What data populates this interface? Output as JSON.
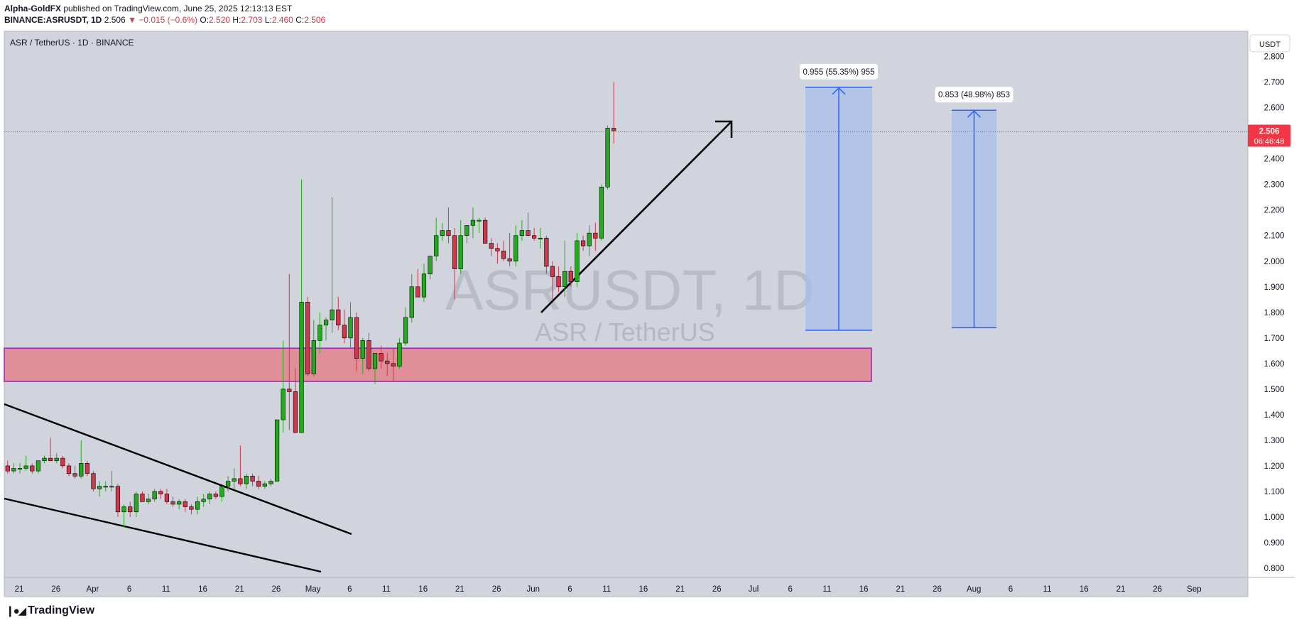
{
  "header": {
    "author": "Alpha-GoldFX",
    "published": " published on TradingView.com, June 25, 2025 12:13:13 EST",
    "symbol": "BINANCE:ASRUSDT, 1D",
    "last": "2.506",
    "change": "−0.015 (−0.6%)",
    "o_label": "O:",
    "o": "2.520",
    "h_label": "H:",
    "h": "2.703",
    "l_label": "L:",
    "l": "2.460",
    "c_label": "C:",
    "c": "2.506"
  },
  "chart_title": "ASR / TetherUS · 1D · BINANCE",
  "currency_button": "USDT",
  "watermark": {
    "ticker": "ASRUSDT, 1D",
    "name": "ASR / TetherUS"
  },
  "price_badge": {
    "price": "2.506",
    "countdown": "06:46:48"
  },
  "footer": {
    "brand": "TradingView"
  },
  "colors": {
    "up": "#22ab1d",
    "down": "#d1364a",
    "zone": "#e08e97",
    "zone_border": "#9c27b0",
    "target_fill": "#a9bfeb",
    "target_line": "#2962ff",
    "plot_bg": "#d1d4dc"
  },
  "chart_data": {
    "type": "candlestick",
    "title": "ASR / TetherUS · 1D · BINANCE",
    "ylim": [
      0.75,
      2.85
    ],
    "y_ticks": [
      "2.800",
      "2.700",
      "2.600",
      "2.500",
      "2.400",
      "2.300",
      "2.200",
      "2.100",
      "2.000",
      "1.900",
      "1.800",
      "1.700",
      "1.600",
      "1.500",
      "1.400",
      "1.300",
      "1.200",
      "1.100",
      "1.000",
      "0.900",
      "0.800"
    ],
    "x_labels": [
      "21",
      "26",
      "Apr",
      "6",
      "11",
      "16",
      "21",
      "26",
      "May",
      "6",
      "11",
      "16",
      "21",
      "26",
      "Jun",
      "6",
      "11",
      "16",
      "21",
      "26",
      "Jul",
      "6",
      "11",
      "16",
      "21",
      "26",
      "Aug",
      "6",
      "11",
      "16",
      "21",
      "26",
      "Sep"
    ],
    "candles": [
      [
        1.2,
        1.22,
        1.17,
        1.18
      ],
      [
        1.18,
        1.21,
        1.17,
        1.19
      ],
      [
        1.19,
        1.21,
        1.17,
        1.19
      ],
      [
        1.19,
        1.24,
        1.18,
        1.2
      ],
      [
        1.2,
        1.21,
        1.17,
        1.18
      ],
      [
        1.18,
        1.22,
        1.17,
        1.22
      ],
      [
        1.22,
        1.24,
        1.21,
        1.23
      ],
      [
        1.23,
        1.31,
        1.22,
        1.22
      ],
      [
        1.22,
        1.25,
        1.21,
        1.23
      ],
      [
        1.23,
        1.24,
        1.19,
        1.2
      ],
      [
        1.2,
        1.21,
        1.16,
        1.17
      ],
      [
        1.17,
        1.2,
        1.15,
        1.16
      ],
      [
        1.16,
        1.3,
        1.15,
        1.21
      ],
      [
        1.21,
        1.22,
        1.16,
        1.17
      ],
      [
        1.17,
        1.18,
        1.1,
        1.11
      ],
      [
        1.11,
        1.14,
        1.08,
        1.12
      ],
      [
        1.12,
        1.14,
        1.1,
        1.12
      ],
      [
        1.12,
        1.18,
        1.1,
        1.12
      ],
      [
        1.12,
        1.13,
        1.0,
        1.02
      ],
      [
        1.02,
        1.05,
        0.96,
        1.04
      ],
      [
        1.04,
        1.06,
        1.0,
        1.02
      ],
      [
        1.02,
        1.1,
        1.0,
        1.09
      ],
      [
        1.09,
        1.1,
        1.06,
        1.06
      ],
      [
        1.06,
        1.09,
        1.05,
        1.07
      ],
      [
        1.07,
        1.11,
        1.06,
        1.1
      ],
      [
        1.1,
        1.11,
        1.07,
        1.09
      ],
      [
        1.09,
        1.11,
        1.05,
        1.06
      ],
      [
        1.06,
        1.08,
        1.04,
        1.05
      ],
      [
        1.05,
        1.07,
        1.03,
        1.06
      ],
      [
        1.06,
        1.07,
        1.02,
        1.04
      ],
      [
        1.04,
        1.05,
        1.01,
        1.03
      ],
      [
        1.03,
        1.08,
        1.01,
        1.06
      ],
      [
        1.06,
        1.09,
        1.04,
        1.07
      ],
      [
        1.07,
        1.1,
        1.05,
        1.09
      ],
      [
        1.09,
        1.1,
        1.07,
        1.08
      ],
      [
        1.08,
        1.12,
        1.06,
        1.12
      ],
      [
        1.12,
        1.16,
        1.1,
        1.14
      ],
      [
        1.14,
        1.19,
        1.11,
        1.15
      ],
      [
        1.15,
        1.28,
        1.12,
        1.13
      ],
      [
        1.13,
        1.17,
        1.11,
        1.16
      ],
      [
        1.16,
        1.17,
        1.12,
        1.14
      ],
      [
        1.14,
        1.16,
        1.11,
        1.12
      ],
      [
        1.12,
        1.14,
        1.11,
        1.13
      ],
      [
        1.13,
        1.15,
        1.12,
        1.14
      ],
      [
        1.14,
        1.38,
        1.14,
        1.38
      ],
      [
        1.38,
        1.69,
        1.33,
        1.5
      ],
      [
        1.5,
        1.95,
        1.34,
        1.49
      ],
      [
        1.49,
        1.58,
        1.33,
        1.33
      ],
      [
        1.33,
        2.32,
        1.33,
        1.84
      ],
      [
        1.84,
        1.86,
        1.55,
        1.56
      ],
      [
        1.56,
        1.77,
        1.55,
        1.69
      ],
      [
        1.69,
        1.8,
        1.64,
        1.75
      ],
      [
        1.75,
        1.78,
        1.69,
        1.77
      ],
      [
        1.77,
        2.25,
        1.72,
        1.81
      ],
      [
        1.81,
        1.86,
        1.73,
        1.75
      ],
      [
        1.75,
        1.81,
        1.68,
        1.7
      ],
      [
        1.7,
        1.84,
        1.66,
        1.78
      ],
      [
        1.78,
        1.8,
        1.57,
        1.62
      ],
      [
        1.62,
        1.7,
        1.56,
        1.69
      ],
      [
        1.69,
        1.72,
        1.57,
        1.58
      ],
      [
        1.58,
        1.64,
        1.52,
        1.64
      ],
      [
        1.64,
        1.67,
        1.58,
        1.61
      ],
      [
        1.61,
        1.64,
        1.55,
        1.6
      ],
      [
        1.6,
        1.66,
        1.53,
        1.59
      ],
      [
        1.59,
        1.7,
        1.58,
        1.68
      ],
      [
        1.68,
        1.82,
        1.67,
        1.78
      ],
      [
        1.78,
        1.95,
        1.76,
        1.9
      ],
      [
        1.9,
        1.97,
        1.87,
        1.86
      ],
      [
        1.86,
        1.99,
        1.84,
        1.95
      ],
      [
        1.95,
        2.02,
        1.93,
        2.02
      ],
      [
        2.02,
        2.17,
        2.0,
        2.1
      ],
      [
        2.1,
        2.15,
        2.08,
        2.12
      ],
      [
        2.12,
        2.21,
        2.07,
        2.1
      ],
      [
        2.1,
        2.13,
        1.85,
        1.97
      ],
      [
        1.97,
        2.16,
        1.95,
        2.1
      ],
      [
        2.1,
        2.14,
        2.07,
        2.14
      ],
      [
        2.14,
        2.21,
        2.09,
        2.16
      ],
      [
        2.16,
        2.17,
        2.11,
        2.16
      ],
      [
        2.16,
        2.17,
        2.08,
        2.07
      ],
      [
        2.07,
        2.09,
        2.02,
        2.05
      ],
      [
        2.05,
        2.07,
        1.99,
        2.04
      ],
      [
        2.04,
        2.08,
        2.0,
        2.01
      ],
      [
        2.01,
        2.11,
        1.98,
        2.0
      ],
      [
        2.0,
        2.14,
        1.98,
        2.1
      ],
      [
        2.1,
        2.16,
        2.08,
        2.12
      ],
      [
        2.12,
        2.19,
        2.1,
        2.1
      ],
      [
        2.1,
        2.13,
        2.08,
        2.09
      ],
      [
        2.09,
        2.13,
        2.05,
        2.09
      ],
      [
        2.09,
        2.1,
        1.95,
        1.98
      ],
      [
        1.98,
        2.0,
        1.85,
        1.94
      ],
      [
        1.94,
        1.98,
        1.88,
        1.9
      ],
      [
        1.9,
        2.08,
        1.86,
        1.96
      ],
      [
        1.96,
        1.98,
        1.9,
        1.92
      ],
      [
        1.92,
        2.11,
        1.9,
        2.08
      ],
      [
        2.08,
        2.1,
        2.04,
        2.06
      ],
      [
        2.06,
        2.14,
        2.02,
        2.11
      ],
      [
        2.11,
        2.15,
        2.04,
        2.09
      ],
      [
        2.09,
        2.3,
        2.08,
        2.29
      ],
      [
        2.29,
        2.53,
        2.28,
        2.52
      ],
      [
        2.52,
        2.7,
        2.46,
        2.51
      ]
    ],
    "support_zone": [
      1.53,
      1.66
    ],
    "targets": [
      {
        "label": "0.955 (55.35%) 955",
        "from": 1.73,
        "to": 2.68
      },
      {
        "label": "0.853 (48.98%) 853",
        "from": 1.74,
        "to": 2.59
      }
    ],
    "last_price": 2.506
  }
}
